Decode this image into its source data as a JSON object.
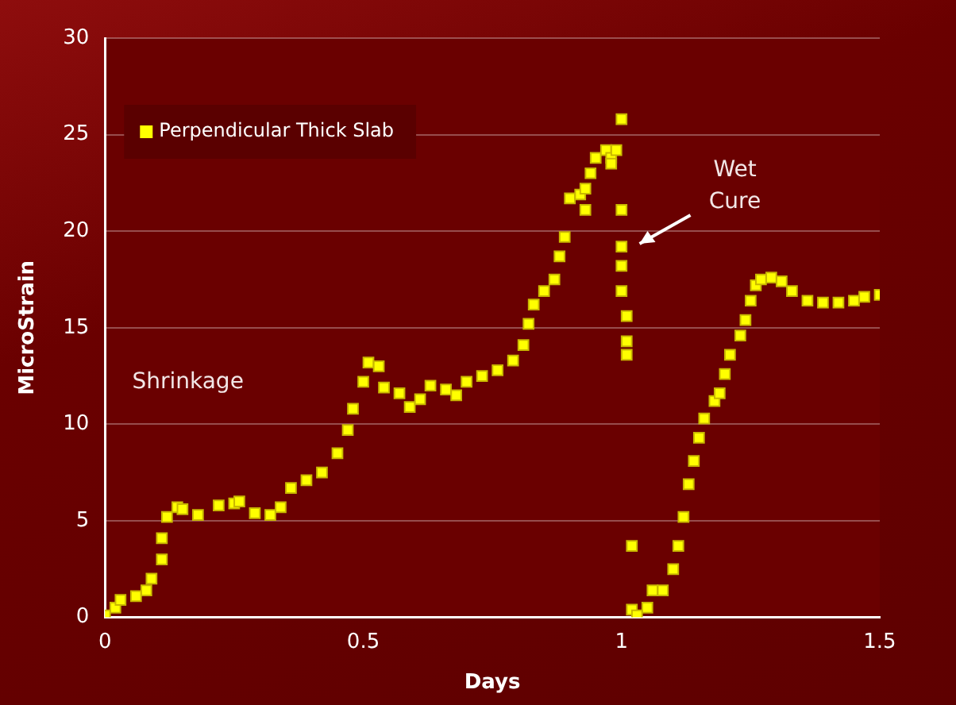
{
  "chart_data": {
    "type": "scatter",
    "xlabel": "Days",
    "ylabel": "MicroStrain",
    "xlim": [
      0,
      1.5
    ],
    "xticks": [
      0,
      0.5,
      1,
      1.5
    ],
    "ylim": [
      0,
      30
    ],
    "yticks": [
      0,
      5,
      10,
      15,
      20,
      25,
      30
    ],
    "grid": "y",
    "legend": "top left",
    "marker": "square",
    "annotations": [
      "Shrinkage",
      "Wet Cure"
    ],
    "series": [
      {
        "name": "Perpendicular Thick Slab",
        "color": "#ffff00",
        "x": [
          0,
          0.02,
          0.03,
          0.06,
          0.08,
          0.09,
          0.11,
          0.11,
          0.12,
          0.14,
          0.15,
          0.18,
          0.22,
          0.25,
          0.26,
          0.29,
          0.32,
          0.34,
          0.36,
          0.39,
          0.42,
          0.45,
          0.47,
          0.48,
          0.5,
          0.51,
          0.53,
          0.54,
          0.57,
          0.59,
          0.61,
          0.63,
          0.66,
          0.68,
          0.7,
          0.73,
          0.76,
          0.79,
          0.81,
          0.82,
          0.83,
          0.85,
          0.87,
          0.88,
          0.89,
          0.9,
          0.92,
          0.93,
          0.93,
          0.94,
          0.95,
          0.97,
          0.98,
          0.98,
          0.99,
          1.0,
          1.0,
          1.0,
          1.0,
          1.0,
          1.01,
          1.01,
          1.01,
          1.02,
          1.02,
          1.03,
          1.05,
          1.06,
          1.08,
          1.1,
          1.11,
          1.12,
          1.13,
          1.14,
          1.15,
          1.16,
          1.18,
          1.19,
          1.2,
          1.21,
          1.23,
          1.24,
          1.25,
          1.26,
          1.27,
          1.29,
          1.31,
          1.33,
          1.36,
          1.39,
          1.42,
          1.45,
          1.47,
          1.5
        ],
        "values": [
          0.1,
          0.5,
          0.9,
          1.1,
          1.4,
          2.0,
          3.0,
          4.1,
          5.2,
          5.7,
          5.6,
          5.3,
          5.8,
          5.9,
          6.0,
          5.4,
          5.3,
          5.7,
          6.7,
          7.1,
          7.5,
          8.5,
          9.7,
          10.8,
          12.2,
          13.2,
          13.0,
          11.9,
          11.6,
          10.9,
          11.3,
          12.0,
          11.8,
          11.5,
          12.2,
          12.5,
          12.8,
          13.3,
          14.1,
          15.2,
          16.2,
          16.9,
          17.5,
          18.7,
          19.7,
          21.7,
          21.9,
          22.2,
          21.1,
          23.0,
          23.8,
          24.2,
          23.8,
          23.5,
          24.2,
          25.8,
          21.1,
          19.2,
          18.2,
          16.9,
          15.6,
          14.3,
          13.6,
          3.7,
          0.4,
          0.1,
          0.5,
          1.4,
          1.4,
          2.5,
          3.7,
          5.2,
          6.9,
          8.1,
          9.3,
          10.3,
          11.2,
          11.6,
          12.6,
          13.6,
          14.6,
          15.4,
          16.4,
          17.2,
          17.5,
          17.6,
          17.4,
          16.9,
          16.4,
          16.3,
          16.3,
          16.4,
          16.6,
          16.7
        ]
      }
    ]
  }
}
